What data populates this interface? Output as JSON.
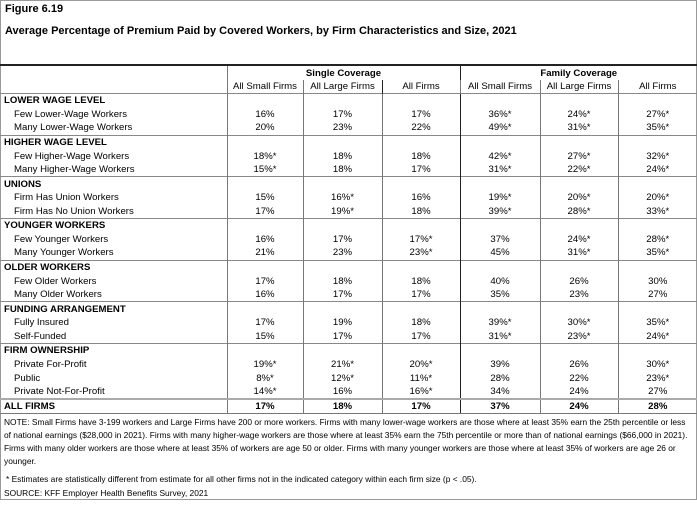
{
  "figure_label": "Figure 6.19",
  "title": "Average Percentage of Premium Paid by Covered Workers, by Firm Characteristics and Size, 2021",
  "groups": [
    "Single Coverage",
    "Family Coverage"
  ],
  "columns": [
    "All Small Firms",
    "All Large Firms",
    "All Firms",
    "All Small Firms",
    "All Large Firms",
    "All Firms"
  ],
  "sections": [
    {
      "header": "LOWER WAGE LEVEL",
      "rows": [
        {
          "label": "Few Lower-Wage Workers",
          "values": [
            "16%",
            "17%",
            "17%",
            "36%*",
            "24%*",
            "27%*"
          ]
        },
        {
          "label": "Many Lower-Wage Workers",
          "values": [
            "20%",
            "23%",
            "22%",
            "49%*",
            "31%*",
            "35%*"
          ]
        }
      ]
    },
    {
      "header": "HIGHER WAGE LEVEL",
      "rows": [
        {
          "label": "Few Higher-Wage Workers",
          "values": [
            "18%*",
            "18%",
            "18%",
            "42%*",
            "27%*",
            "32%*"
          ]
        },
        {
          "label": "Many Higher-Wage Workers",
          "values": [
            "15%*",
            "18%",
            "17%",
            "31%*",
            "22%*",
            "24%*"
          ]
        }
      ]
    },
    {
      "header": "UNIONS",
      "rows": [
        {
          "label": "Firm Has Union Workers",
          "values": [
            "15%",
            "16%*",
            "16%",
            "19%*",
            "20%*",
            "20%*"
          ]
        },
        {
          "label": "Firm Has No Union Workers",
          "values": [
            "17%",
            "19%*",
            "18%",
            "39%*",
            "28%*",
            "33%*"
          ]
        }
      ]
    },
    {
      "header": "YOUNGER WORKERS",
      "rows": [
        {
          "label": "Few Younger Workers",
          "values": [
            "16%",
            "17%",
            "17%*",
            "37%",
            "24%*",
            "28%*"
          ]
        },
        {
          "label": "Many Younger Workers",
          "values": [
            "21%",
            "23%",
            "23%*",
            "45%",
            "31%*",
            "35%*"
          ]
        }
      ]
    },
    {
      "header": "OLDER WORKERS",
      "rows": [
        {
          "label": "Few Older Workers",
          "values": [
            "17%",
            "18%",
            "18%",
            "40%",
            "26%",
            "30%"
          ]
        },
        {
          "label": "Many Older Workers",
          "values": [
            "16%",
            "17%",
            "17%",
            "35%",
            "23%",
            "27%"
          ]
        }
      ]
    },
    {
      "header": "FUNDING ARRANGEMENT",
      "rows": [
        {
          "label": "Fully Insured",
          "values": [
            "17%",
            "19%",
            "18%",
            "39%*",
            "30%*",
            "35%*"
          ]
        },
        {
          "label": "Self-Funded",
          "values": [
            "15%",
            "17%",
            "17%",
            "31%*",
            "23%*",
            "24%*"
          ]
        }
      ]
    },
    {
      "header": "FIRM OWNERSHIP",
      "rows": [
        {
          "label": "Private For-Profit",
          "values": [
            "19%*",
            "21%*",
            "20%*",
            "39%",
            "26%",
            "30%*"
          ]
        },
        {
          "label": "Public",
          "values": [
            "8%*",
            "12%*",
            "11%*",
            "28%",
            "22%",
            "23%*"
          ]
        },
        {
          "label": "Private Not-For-Profit",
          "values": [
            "14%*",
            "16%",
            "16%*",
            "34%",
            "24%",
            "27%"
          ]
        }
      ]
    }
  ],
  "total": {
    "label": "ALL FIRMS",
    "values": [
      "17%",
      "18%",
      "17%",
      "37%",
      "24%",
      "28%"
    ]
  },
  "note": "NOTE: Small Firms have 3-199 workers and Large Firms have 200 or more workers. Firms with many lower-wage workers are those where at least 35% earn the 25th percentile or less of national earnings ($28,000 in 2021). Firms with many higher-wage workers are those where at least 35% earn the 75th percentile or more than of national earnings ($66,000 in 2021). Firms with many older workers are those where at least 35% of workers are age 50 or older. Firms with many younger workers are those where at least 35% of workers are age 26 or younger.",
  "footnote": "* Estimates are statistically different from estimate for all other firms not in the indicated category within each firm size (p < .05).",
  "source": "SOURCE: KFF Employer Health Benefits Survey, 2021"
}
